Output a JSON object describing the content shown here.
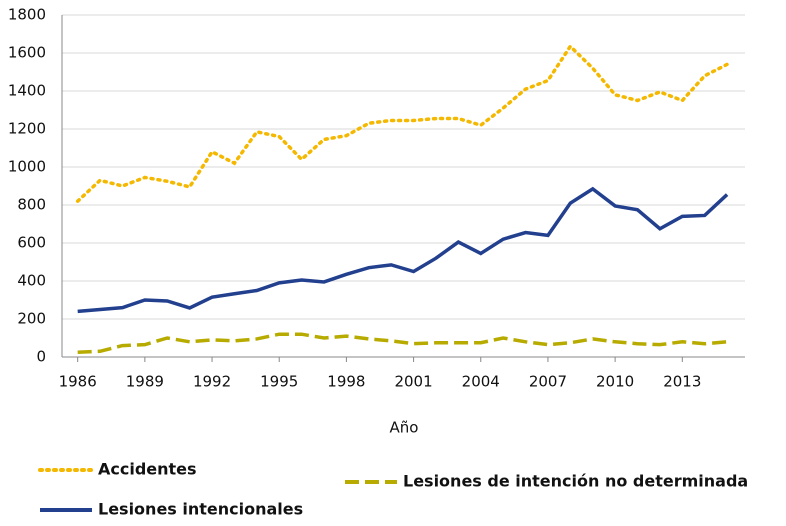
{
  "chart_data": {
    "type": "line",
    "x_label": "Año",
    "x": [
      1986,
      1987,
      1988,
      1989,
      1990,
      1991,
      1992,
      1993,
      1994,
      1995,
      1996,
      1997,
      1998,
      1999,
      2000,
      2001,
      2002,
      2003,
      2004,
      2005,
      2006,
      2007,
      2008,
      2009,
      2010,
      2011,
      2012,
      2013,
      2014,
      2015
    ],
    "series": [
      {
        "name": "Accidentes",
        "color": "#f5b800",
        "dash": "dotted",
        "values": [
          820,
          930,
          900,
          945,
          925,
          895,
          1080,
          1020,
          1185,
          1160,
          1040,
          1145,
          1165,
          1230,
          1245,
          1245,
          1255,
          1255,
          1220,
          1310,
          1410,
          1455,
          1635,
          1520,
          1380,
          1350,
          1395,
          1350,
          1480,
          1540
        ]
      },
      {
        "name": "Lesiones intencionales",
        "color": "#22408e",
        "dash": "solid",
        "values": [
          240,
          250,
          260,
          300,
          295,
          258,
          315,
          333,
          350,
          390,
          405,
          395,
          435,
          470,
          485,
          450,
          520,
          605,
          545,
          620,
          655,
          640,
          810,
          885,
          795,
          775,
          675,
          740,
          745,
          855
        ]
      },
      {
        "name": "Lesiones de intención no determinada",
        "color": "#b8ab00",
        "dash": "dashed",
        "values": [
          25,
          30,
          60,
          65,
          100,
          80,
          90,
          85,
          95,
          120,
          120,
          100,
          110,
          95,
          85,
          70,
          75,
          75,
          75,
          100,
          80,
          65,
          75,
          95,
          80,
          70,
          65,
          80,
          70,
          80
        ]
      }
    ],
    "xlim": [
      1985.3,
      2015.8
    ],
    "xticks": [
      1986,
      1989,
      1992,
      1995,
      1998,
      2001,
      2004,
      2007,
      2010,
      2013
    ],
    "ylim": [
      0,
      1800
    ],
    "yticks": [
      0,
      200,
      400,
      600,
      800,
      1000,
      1200,
      1400,
      1600,
      1800
    ],
    "grid": true
  }
}
